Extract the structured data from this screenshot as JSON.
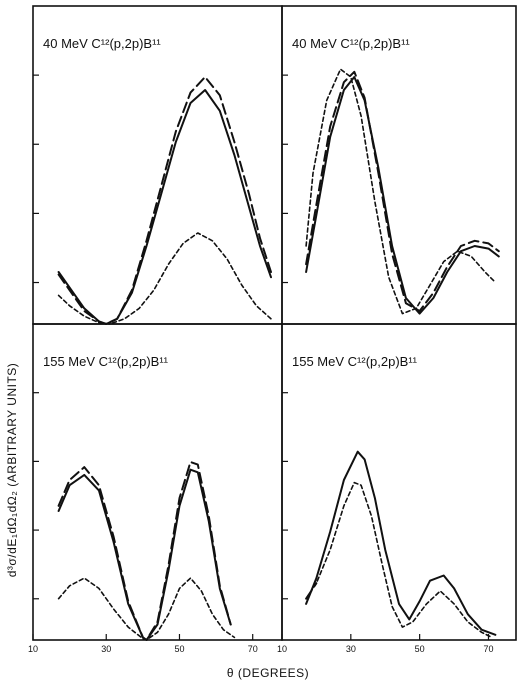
{
  "figure": {
    "ylabel": "d³σ/dE₁dΩ₁dΩ₂ (ARBITRARY UNITS)",
    "xlabel": "θ (DEGREES)"
  },
  "chart_data": [
    {
      "type": "line",
      "title": "40 MeV C¹²(p,2p)B¹¹",
      "xlim": [
        10,
        78
      ],
      "ylim": [
        0,
        1
      ],
      "x_ticks": [
        10,
        30,
        50,
        70
      ],
      "series": [
        {
          "style": "solid",
          "x": [
            17,
            20,
            24,
            28,
            30,
            33,
            37,
            41,
            45,
            49,
            53,
            57,
            61,
            65,
            69,
            72,
            75
          ],
          "y": [
            0.2,
            0.14,
            0.06,
            0.01,
            0,
            0.02,
            0.12,
            0.3,
            0.5,
            0.7,
            0.85,
            0.9,
            0.82,
            0.65,
            0.45,
            0.3,
            0.18
          ]
        },
        {
          "style": "long-dash",
          "x": [
            17,
            20,
            24,
            28,
            30,
            33,
            37,
            41,
            45,
            49,
            53,
            57,
            61,
            65,
            69,
            72,
            75
          ],
          "y": [
            0.19,
            0.13,
            0.05,
            0.01,
            0,
            0.02,
            0.13,
            0.32,
            0.53,
            0.74,
            0.89,
            0.95,
            0.88,
            0.7,
            0.5,
            0.33,
            0.2
          ]
        },
        {
          "style": "short-dash",
          "x": [
            17,
            20,
            24,
            28,
            31,
            35,
            39,
            43,
            47,
            51,
            55,
            59,
            63,
            67,
            71,
            75
          ],
          "y": [
            0.11,
            0.07,
            0.03,
            0.005,
            0,
            0.02,
            0.06,
            0.13,
            0.23,
            0.31,
            0.35,
            0.32,
            0.25,
            0.15,
            0.07,
            0.02
          ]
        }
      ]
    },
    {
      "type": "line",
      "title": "40 MeV C¹²(p,2p)B¹¹",
      "xlim": [
        10,
        78
      ],
      "ylim": [
        0,
        1
      ],
      "x_ticks": [
        10,
        30,
        50,
        70
      ],
      "series": [
        {
          "style": "solid",
          "x": [
            17,
            20,
            24,
            28,
            31,
            34,
            38,
            42,
            46,
            50,
            54,
            58,
            62,
            66,
            70,
            73
          ],
          "y": [
            0.2,
            0.42,
            0.72,
            0.9,
            0.95,
            0.86,
            0.6,
            0.3,
            0.1,
            0.04,
            0.1,
            0.2,
            0.28,
            0.3,
            0.29,
            0.26
          ]
        },
        {
          "style": "long-dash",
          "x": [
            17,
            20,
            24,
            28,
            31,
            34,
            38,
            42,
            46,
            50,
            54,
            58,
            62,
            66,
            70,
            73
          ],
          "y": [
            0.23,
            0.46,
            0.76,
            0.93,
            0.97,
            0.87,
            0.58,
            0.27,
            0.08,
            0.05,
            0.12,
            0.22,
            0.3,
            0.32,
            0.31,
            0.28
          ]
        },
        {
          "style": "short-dash",
          "x": [
            17,
            19,
            23,
            27,
            30,
            33,
            37,
            41,
            45,
            49,
            53,
            57,
            61,
            65,
            69,
            72
          ],
          "y": [
            0.3,
            0.58,
            0.86,
            0.98,
            0.95,
            0.8,
            0.47,
            0.18,
            0.04,
            0.06,
            0.15,
            0.24,
            0.28,
            0.26,
            0.2,
            0.16
          ]
        }
      ]
    },
    {
      "type": "line",
      "title": "155 MeV C¹²(p,2p)B¹¹",
      "xlim": [
        10,
        78
      ],
      "ylim": [
        0,
        1
      ],
      "x_ticks": [
        10,
        30,
        50,
        70
      ],
      "series": [
        {
          "style": "solid",
          "x": [
            17,
            20,
            24,
            28,
            32,
            36,
            40,
            41,
            44,
            47,
            50,
            53,
            55,
            58,
            61,
            64
          ],
          "y": [
            0.5,
            0.6,
            0.64,
            0.58,
            0.38,
            0.14,
            0.01,
            0,
            0.06,
            0.27,
            0.52,
            0.66,
            0.65,
            0.46,
            0.2,
            0.06
          ]
        },
        {
          "style": "long-dash",
          "x": [
            17,
            20,
            24,
            28,
            32,
            36,
            40,
            41,
            44,
            47,
            50,
            53,
            55,
            58,
            61,
            64
          ],
          "y": [
            0.52,
            0.62,
            0.67,
            0.6,
            0.4,
            0.15,
            0.01,
            0,
            0.07,
            0.29,
            0.55,
            0.69,
            0.68,
            0.48,
            0.21,
            0.06
          ]
        },
        {
          "style": "short-dash",
          "x": [
            17,
            20,
            24,
            28,
            32,
            36,
            40,
            41,
            44,
            47,
            50,
            53,
            56,
            59,
            62,
            65
          ],
          "y": [
            0.16,
            0.21,
            0.24,
            0.2,
            0.12,
            0.05,
            0.005,
            0,
            0.03,
            0.1,
            0.2,
            0.24,
            0.19,
            0.1,
            0.04,
            0.01
          ]
        }
      ]
    },
    {
      "type": "line",
      "title": "155 MeV C¹²(p,2p)B¹¹",
      "xlim": [
        10,
        78
      ],
      "ylim": [
        0,
        1
      ],
      "x_ticks": [
        10,
        30,
        50,
        70
      ],
      "series": [
        {
          "style": "solid",
          "x": [
            17,
            20,
            24,
            28,
            32,
            34,
            37,
            40,
            44,
            47,
            50,
            53,
            57,
            60,
            64,
            68,
            72
          ],
          "y": [
            0.14,
            0.24,
            0.42,
            0.62,
            0.73,
            0.7,
            0.55,
            0.35,
            0.14,
            0.08,
            0.15,
            0.23,
            0.25,
            0.2,
            0.1,
            0.04,
            0.02
          ]
        },
        {
          "style": "long-dash",
          "x": [
            17,
            20
          ],
          "y": [
            0.16,
            0.22
          ]
        },
        {
          "style": "short-dash",
          "x": [
            17,
            20,
            24,
            28,
            31,
            33,
            36,
            39,
            42,
            45,
            48,
            52,
            56,
            60,
            64,
            68,
            71
          ],
          "y": [
            0.16,
            0.22,
            0.35,
            0.52,
            0.61,
            0.6,
            0.48,
            0.3,
            0.13,
            0.05,
            0.07,
            0.14,
            0.19,
            0.14,
            0.07,
            0.03,
            0.01
          ]
        }
      ]
    }
  ],
  "colors": {
    "ink": "#111111",
    "background": "#ffffff"
  }
}
